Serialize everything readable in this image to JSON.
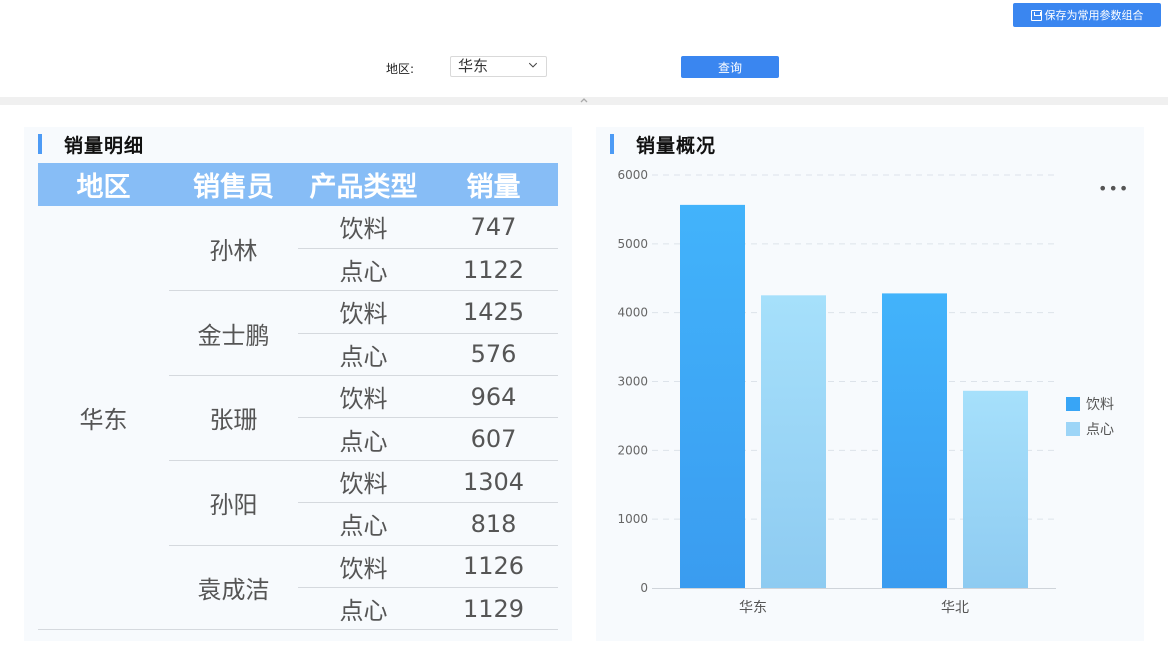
{
  "toolbar": {
    "save_label": "保存为常用参数组合",
    "region_label": "地区:",
    "region_value": "华东",
    "query_label": "查询"
  },
  "detail": {
    "title": "销量明细",
    "headers": [
      "地区",
      "销售员",
      "产品类型",
      "销量"
    ],
    "region": "华东",
    "sellers": [
      {
        "name": "孙林",
        "rows": [
          {
            "type": "饮料",
            "qty": "747"
          },
          {
            "type": "点心",
            "qty": "1122"
          }
        ]
      },
      {
        "name": "金士鹏",
        "rows": [
          {
            "type": "饮料",
            "qty": "1425"
          },
          {
            "type": "点心",
            "qty": "576"
          }
        ]
      },
      {
        "name": "张珊",
        "rows": [
          {
            "type": "饮料",
            "qty": "964"
          },
          {
            "type": "点心",
            "qty": "607"
          }
        ]
      },
      {
        "name": "孙阳",
        "rows": [
          {
            "type": "饮料",
            "qty": "1304"
          },
          {
            "type": "点心",
            "qty": "818"
          }
        ]
      },
      {
        "name": "袁成洁",
        "rows": [
          {
            "type": "饮料",
            "qty": "1126"
          },
          {
            "type": "点心",
            "qty": "1129"
          }
        ]
      }
    ]
  },
  "overview": {
    "title": "销量概况",
    "more_icon": "more-horizontal-icon"
  },
  "chart_data": {
    "type": "bar",
    "categories": [
      "华东",
      "华北"
    ],
    "series": [
      {
        "name": "饮料",
        "values": [
          5566,
          4280
        ],
        "color": "#38a5f6"
      },
      {
        "name": "点心",
        "values": [
          4252,
          2865
        ],
        "color": "#9dd5f7"
      }
    ],
    "yticks": [
      "0",
      "1000",
      "2000",
      "3000",
      "4000",
      "5000",
      "6000"
    ],
    "ylim": [
      0,
      6000
    ],
    "grid": true,
    "legend": "right"
  },
  "colors": {
    "accent": "#3a86f0",
    "header_bg": "#87bdf6",
    "panel_bg": "#f7fafd"
  }
}
